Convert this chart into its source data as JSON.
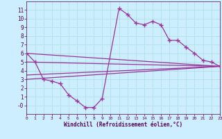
{
  "background_color": "#cceeff",
  "grid_color": "#aadddd",
  "line_color": "#993399",
  "xlabel": "Windchill (Refroidissement éolien,°C)",
  "xlim": [
    0,
    23
  ],
  "ylim": [
    -1,
    12
  ],
  "yticks": [
    0,
    1,
    2,
    3,
    4,
    5,
    6,
    7,
    8,
    9,
    10,
    11
  ],
  "ytick_labels": [
    "-0",
    "1",
    "2",
    "3",
    "4",
    "5",
    "6",
    "7",
    "8",
    "9",
    "10",
    "11"
  ],
  "xticks": [
    0,
    1,
    2,
    3,
    4,
    5,
    6,
    7,
    8,
    9,
    10,
    11,
    12,
    13,
    14,
    15,
    16,
    17,
    18,
    19,
    20,
    21,
    22,
    23
  ],
  "zigzag_x": [
    0,
    1,
    2,
    3,
    4,
    5,
    6,
    7,
    8,
    9,
    11,
    12,
    13,
    14,
    15,
    16,
    17,
    18,
    19,
    20,
    21,
    22,
    23
  ],
  "zigzag_y": [
    6.0,
    5.0,
    3.0,
    2.8,
    2.5,
    1.2,
    0.5,
    -0.25,
    -0.25,
    0.8,
    11.2,
    10.5,
    9.5,
    9.3,
    9.7,
    9.3,
    7.5,
    7.5,
    6.7,
    6.0,
    5.2,
    5.0,
    4.5
  ],
  "upper_line_x": [
    0,
    23
  ],
  "upper_line_y": [
    6.0,
    4.5
  ],
  "middle_upper_line_x": [
    0,
    23
  ],
  "middle_upper_line_y": [
    5.0,
    4.5
  ],
  "middle_lower_line_x": [
    0,
    23
  ],
  "middle_lower_line_y": [
    3.5,
    4.5
  ],
  "lower_line_x": [
    0,
    23
  ],
  "lower_line_y": [
    3.0,
    4.5
  ]
}
